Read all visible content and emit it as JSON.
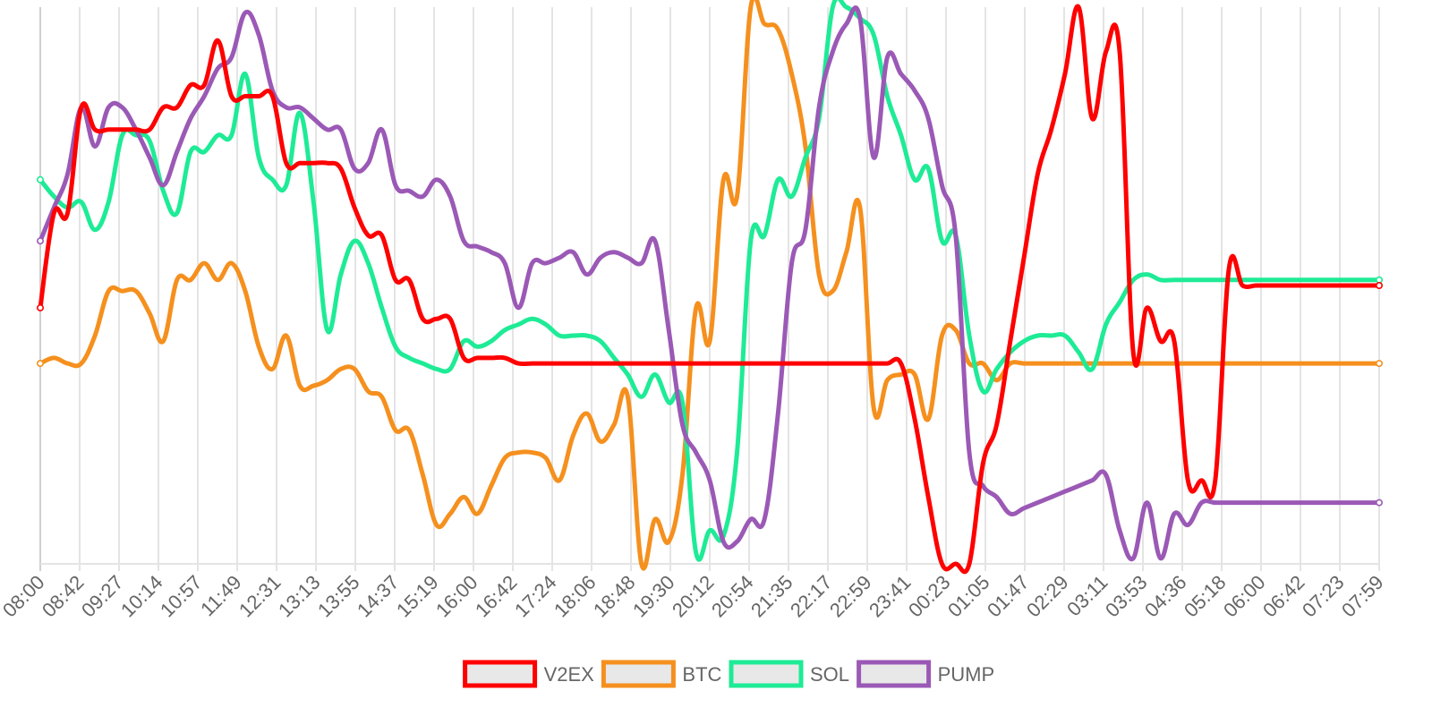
{
  "chart_data": {
    "type": "line",
    "title": "",
    "xlabel": "",
    "ylabel": "",
    "x_ticks": [
      "08:00",
      "08:42",
      "09:27",
      "10:14",
      "10:57",
      "11:49",
      "12:31",
      "13:13",
      "13:55",
      "14:37",
      "15:19",
      "16:00",
      "16:42",
      "17:24",
      "18:06",
      "18:48",
      "19:30",
      "20:12",
      "20:54",
      "21:35",
      "22:17",
      "22:59",
      "23:41",
      "00:23",
      "01:05",
      "01:47",
      "02:29",
      "03:11",
      "03:53",
      "04:36",
      "05:18",
      "06:00",
      "06:42",
      "07:23",
      "07:59"
    ],
    "ylim": [
      0,
      100
    ],
    "grid": {
      "vertical": true,
      "horizontal": false
    },
    "legend_position": "bottom",
    "series": [
      {
        "name": "V2EX",
        "color": "#ff0000",
        "values": [
          46,
          63,
          63,
          82,
          78,
          78,
          78,
          78,
          78,
          82,
          82,
          86,
          86,
          94,
          84,
          84,
          84,
          84,
          72,
          72,
          72,
          72,
          71,
          64,
          59,
          59,
          51,
          51,
          44,
          44,
          44,
          37,
          37,
          37,
          37,
          36,
          36,
          36,
          36,
          36,
          36,
          36,
          36,
          36,
          36,
          36,
          36,
          36,
          36,
          36,
          36,
          36,
          36,
          36,
          36,
          36,
          36,
          36,
          36,
          36,
          36,
          36,
          36,
          36,
          26,
          12,
          0,
          0,
          0,
          18,
          25,
          40,
          55,
          70,
          78,
          88,
          100,
          80,
          92,
          92,
          38,
          46,
          40,
          40,
          15,
          15,
          15,
          53,
          50,
          50,
          50,
          50,
          50,
          50,
          50,
          50,
          50,
          50,
          50
        ]
      },
      {
        "name": "BTC",
        "color": "#f5901e",
        "values": [
          36,
          37,
          36,
          36,
          41,
          49,
          49,
          49,
          45,
          40,
          51,
          51,
          54,
          51,
          54,
          49,
          39,
          35,
          41,
          32,
          32,
          33,
          35,
          35,
          31,
          30,
          24,
          24,
          16,
          7,
          9,
          12,
          9,
          14,
          19,
          20,
          20,
          19,
          15,
          23,
          27,
          22,
          25,
          30,
          0,
          8,
          4,
          16,
          46,
          40,
          69,
          66,
          100,
          97,
          96,
          88,
          75,
          52,
          49,
          56,
          64,
          28,
          33,
          34,
          34,
          26,
          41,
          42,
          36,
          36,
          33,
          36,
          36,
          36,
          36,
          36,
          36,
          36,
          36,
          36,
          36,
          36,
          36,
          36,
          36,
          36,
          36,
          36,
          36,
          36,
          36,
          36,
          36,
          36,
          36,
          36,
          36,
          36,
          36
        ]
      },
      {
        "name": "SOL",
        "color": "#1eeb96",
        "values": [
          69,
          66,
          64,
          65,
          60,
          65,
          77,
          77,
          76,
          67,
          63,
          74,
          74,
          77,
          77,
          88,
          73,
          69,
          68,
          81,
          65,
          42,
          52,
          58,
          54,
          46,
          39,
          37,
          36,
          35,
          35,
          40,
          39,
          40,
          42,
          43,
          44,
          43,
          41,
          41,
          41,
          40,
          37,
          34,
          30,
          34,
          29,
          29,
          2,
          6,
          5,
          20,
          58,
          59,
          69,
          66,
          73,
          80,
          100,
          100,
          98,
          95,
          84,
          77,
          69,
          71,
          58,
          59,
          41,
          31,
          35,
          38,
          40,
          41,
          41,
          41,
          38,
          35,
          43,
          47,
          51,
          52,
          51,
          51,
          51,
          51,
          51,
          51,
          51,
          51,
          51,
          51,
          51,
          51,
          51,
          51,
          51,
          51,
          51
        ]
      },
      {
        "name": "PUMP",
        "color": "#9b59b6",
        "values": [
          58,
          64,
          70,
          82,
          75,
          82,
          82,
          78,
          73,
          68,
          74,
          80,
          84,
          89,
          91,
          99,
          95,
          85,
          82,
          82,
          80,
          78,
          78,
          71,
          72,
          78,
          68,
          67,
          66,
          69,
          66,
          58,
          57,
          56,
          54,
          46,
          54,
          54,
          55,
          56,
          52,
          55,
          56,
          55,
          54,
          58,
          42,
          25,
          20,
          15,
          4,
          4,
          8,
          8,
          27,
          54,
          60,
          82,
          92,
          97,
          98,
          73,
          91,
          88,
          85,
          80,
          68,
          59,
          20,
          14,
          12,
          9,
          10,
          11,
          12,
          13,
          14,
          15,
          16,
          6,
          1,
          11,
          1,
          9,
          7,
          11,
          11,
          11,
          11,
          11,
          11,
          11,
          11,
          11,
          11,
          11,
          11,
          11,
          11
        ]
      }
    ]
  }
}
